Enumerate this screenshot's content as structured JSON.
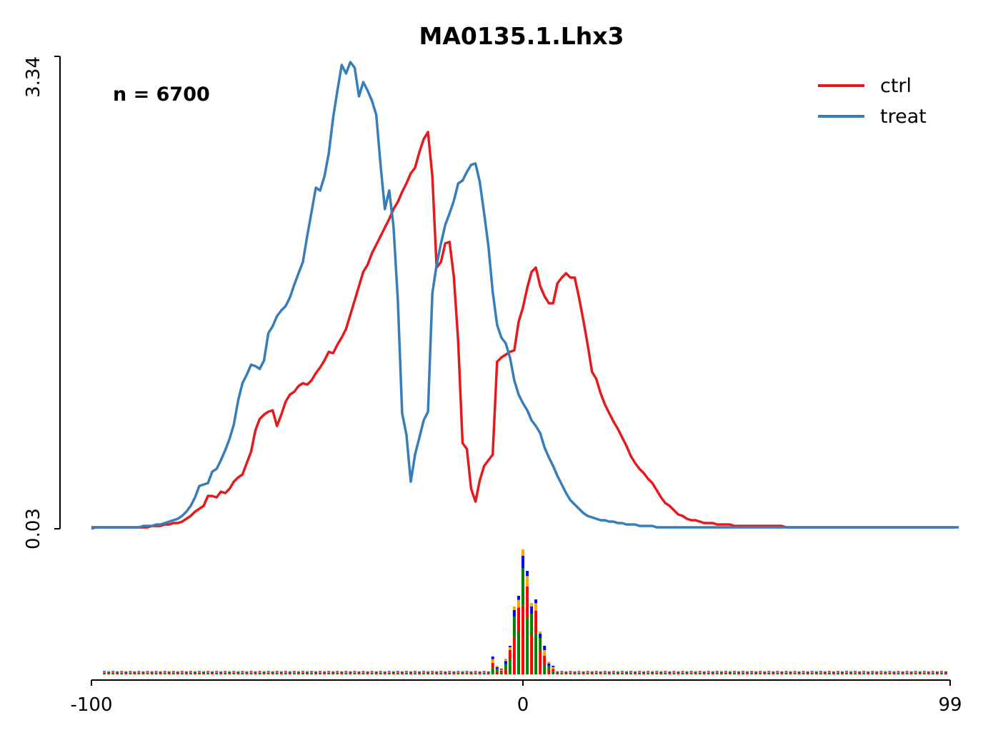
{
  "chart_data": {
    "type": "line",
    "title": "MA0135.1.Lhx3",
    "annotation": "n = 6700",
    "xlabel": "",
    "ylabel": "",
    "xlim": [
      -100,
      99
    ],
    "ylim": [
      0.03,
      3.34
    ],
    "x_ticks": [
      "-100",
      "0",
      "99"
    ],
    "y_ticks": [
      "0.03",
      "3.34"
    ],
    "legend_position": "top-right",
    "grid": false,
    "colors": {
      "ctrl": "#e41a1c",
      "treat": "#377eb8"
    },
    "series": [
      {
        "name": "ctrl",
        "x_start": -100,
        "x_step": 1,
        "values": [
          0.04,
          0.04,
          0.04,
          0.04,
          0.04,
          0.04,
          0.04,
          0.04,
          0.04,
          0.04,
          0.04,
          0.04,
          0.04,
          0.04,
          0.05,
          0.05,
          0.05,
          0.06,
          0.06,
          0.07,
          0.07,
          0.08,
          0.1,
          0.12,
          0.15,
          0.17,
          0.19,
          0.26,
          0.26,
          0.25,
          0.29,
          0.28,
          0.31,
          0.36,
          0.39,
          0.41,
          0.49,
          0.57,
          0.72,
          0.8,
          0.83,
          0.85,
          0.86,
          0.75,
          0.83,
          0.92,
          0.97,
          0.99,
          1.03,
          1.05,
          1.04,
          1.07,
          1.12,
          1.16,
          1.21,
          1.27,
          1.26,
          1.32,
          1.37,
          1.43,
          1.53,
          1.63,
          1.73,
          1.83,
          1.88,
          1.96,
          2.02,
          2.08,
          2.14,
          2.2,
          2.27,
          2.32,
          2.39,
          2.45,
          2.52,
          2.56,
          2.67,
          2.76,
          2.81,
          2.5,
          1.86,
          1.9,
          2.03,
          2.04,
          1.79,
          1.34,
          0.63,
          0.59,
          0.31,
          0.22,
          0.37,
          0.47,
          0.51,
          0.55,
          1.2,
          1.23,
          1.25,
          1.27,
          1.28,
          1.48,
          1.58,
          1.72,
          1.83,
          1.86,
          1.73,
          1.66,
          1.61,
          1.61,
          1.75,
          1.79,
          1.82,
          1.79,
          1.79,
          1.65,
          1.49,
          1.32,
          1.13,
          1.08,
          0.98,
          0.9,
          0.84,
          0.78,
          0.73,
          0.67,
          0.61,
          0.54,
          0.49,
          0.45,
          0.42,
          0.38,
          0.35,
          0.3,
          0.25,
          0.21,
          0.19,
          0.16,
          0.13,
          0.12,
          0.1,
          0.09,
          0.09,
          0.08,
          0.07,
          0.07,
          0.07,
          0.06,
          0.06,
          0.06,
          0.06,
          0.05,
          0.05,
          0.05,
          0.05,
          0.05,
          0.05,
          0.05,
          0.05,
          0.05,
          0.05,
          0.05,
          0.05,
          0.04,
          0.04,
          0.04,
          0.04,
          0.04,
          0.04,
          0.04,
          0.04,
          0.04,
          0.04,
          0.04,
          0.04,
          0.04,
          0.04,
          0.04,
          0.04,
          0.04,
          0.04,
          0.04,
          0.04,
          0.04,
          0.04,
          0.04,
          0.04,
          0.04,
          0.04,
          0.04,
          0.04,
          0.04,
          0.04,
          0.04,
          0.04,
          0.04,
          0.04,
          0.04,
          0.04,
          0.04,
          0.04,
          0.04,
          0.04
        ]
      },
      {
        "name": "treat",
        "x_start": -100,
        "x_step": 1,
        "values": [
          0.03,
          0.04,
          0.04,
          0.04,
          0.04,
          0.04,
          0.04,
          0.04,
          0.04,
          0.04,
          0.04,
          0.04,
          0.05,
          0.05,
          0.05,
          0.06,
          0.06,
          0.07,
          0.08,
          0.09,
          0.1,
          0.12,
          0.15,
          0.19,
          0.25,
          0.33,
          0.34,
          0.35,
          0.43,
          0.45,
          0.51,
          0.58,
          0.66,
          0.76,
          0.93,
          1.05,
          1.11,
          1.18,
          1.17,
          1.15,
          1.21,
          1.4,
          1.45,
          1.52,
          1.56,
          1.59,
          1.65,
          1.74,
          1.82,
          1.9,
          2.08,
          2.25,
          2.42,
          2.4,
          2.5,
          2.66,
          2.91,
          3.1,
          3.28,
          3.22,
          3.3,
          3.26,
          3.06,
          3.16,
          3.1,
          3.03,
          2.93,
          2.58,
          2.27,
          2.4,
          2.15,
          1.63,
          0.84,
          0.69,
          0.36,
          0.55,
          0.67,
          0.79,
          0.85,
          1.68,
          1.88,
          2.03,
          2.16,
          2.24,
          2.33,
          2.45,
          2.47,
          2.53,
          2.58,
          2.59,
          2.46,
          2.24,
          2.01,
          1.69,
          1.46,
          1.37,
          1.33,
          1.23,
          1.07,
          0.97,
          0.91,
          0.86,
          0.79,
          0.75,
          0.7,
          0.6,
          0.53,
          0.47,
          0.4,
          0.34,
          0.28,
          0.23,
          0.2,
          0.17,
          0.14,
          0.12,
          0.11,
          0.1,
          0.09,
          0.09,
          0.08,
          0.08,
          0.07,
          0.07,
          0.06,
          0.06,
          0.06,
          0.05,
          0.05,
          0.05,
          0.05,
          0.04,
          0.04,
          0.04,
          0.04,
          0.04,
          0.04,
          0.04,
          0.04,
          0.04,
          0.04,
          0.04,
          0.04,
          0.04,
          0.04,
          0.04,
          0.04,
          0.04,
          0.04,
          0.04,
          0.04,
          0.04,
          0.04,
          0.04,
          0.04,
          0.04,
          0.04,
          0.04,
          0.04,
          0.04,
          0.04,
          0.04,
          0.04,
          0.04,
          0.04,
          0.04,
          0.04,
          0.04,
          0.04,
          0.04,
          0.04,
          0.04,
          0.04,
          0.04,
          0.04,
          0.04,
          0.04,
          0.04,
          0.04,
          0.04,
          0.04,
          0.04,
          0.04,
          0.04,
          0.04,
          0.04,
          0.04,
          0.04,
          0.04,
          0.04,
          0.04,
          0.04,
          0.04,
          0.04,
          0.04,
          0.04,
          0.04,
          0.04,
          0.04,
          0.04,
          0.04,
          0.04
        ]
      }
    ],
    "motif_logo": {
      "description": "sequence-logo strip aligned to the x axis, peaked around position 0",
      "letters": [
        "A",
        "C",
        "G",
        "T"
      ],
      "letter_colors": {
        "A": "#008000",
        "C": "#0000ff",
        "G": "#ffa500",
        "T": "#ff0000"
      }
    }
  }
}
